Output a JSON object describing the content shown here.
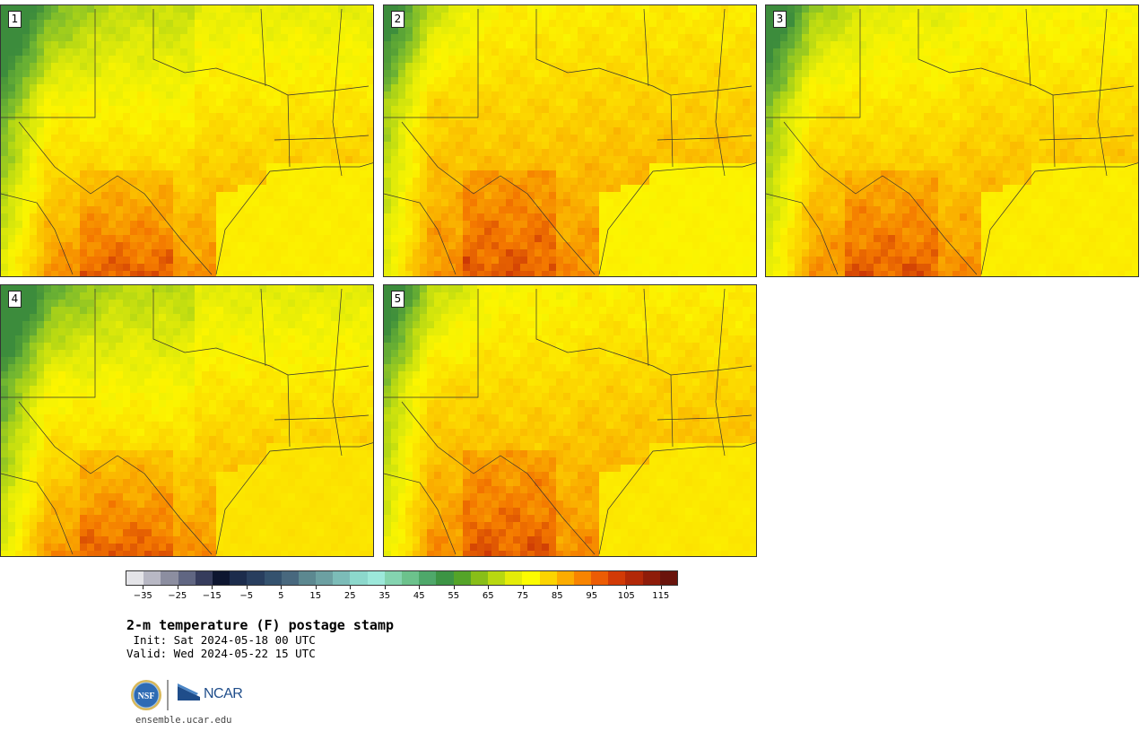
{
  "panels": [
    {
      "number": "1",
      "variant": 0
    },
    {
      "number": "2",
      "variant": 1
    },
    {
      "number": "3",
      "variant": 2
    },
    {
      "number": "4",
      "variant": 3
    },
    {
      "number": "5",
      "variant": 4
    }
  ],
  "colorbar": {
    "colors": [
      "#e4e4e8",
      "#b8b8c4",
      "#8c8ea0",
      "#606682",
      "#363c5c",
      "#0e1630",
      "#1c2c4c",
      "#283e5e",
      "#34526e",
      "#48687e",
      "#5c8890",
      "#6ca0a2",
      "#7cbcb8",
      "#8cd8cc",
      "#9ce8da",
      "#84d4b0",
      "#6cc28c",
      "#4ea86a",
      "#3c9444",
      "#54a428",
      "#88be18",
      "#b8d810",
      "#e4ec08",
      "#fcfc00",
      "#fcd400",
      "#fcac00",
      "#f88400",
      "#ec5c04",
      "#d23a06",
      "#b22808",
      "#8e1c0a",
      "#6a140c"
    ],
    "tick_values": [
      -35,
      -25,
      -15,
      -5,
      5,
      15,
      25,
      35,
      45,
      55,
      65,
      75,
      85,
      95,
      105,
      115
    ],
    "tick_labels": [
      "−35",
      "−25",
      "−15",
      "−5",
      "5",
      "15",
      "25",
      "35",
      "45",
      "55",
      "65",
      "75",
      "85",
      "95",
      "105",
      "115"
    ],
    "min": -40,
    "max": 120
  },
  "title": "2-m temperature (F) postage stamp",
  "init": " Init: Sat 2024-05-18 00 UTC",
  "valid": "Valid: Wed 2024-05-22 15 UTC",
  "logo": {
    "nsf": "NSF",
    "ncar": "NCAR"
  },
  "website": "ensemble.ucar.edu"
}
